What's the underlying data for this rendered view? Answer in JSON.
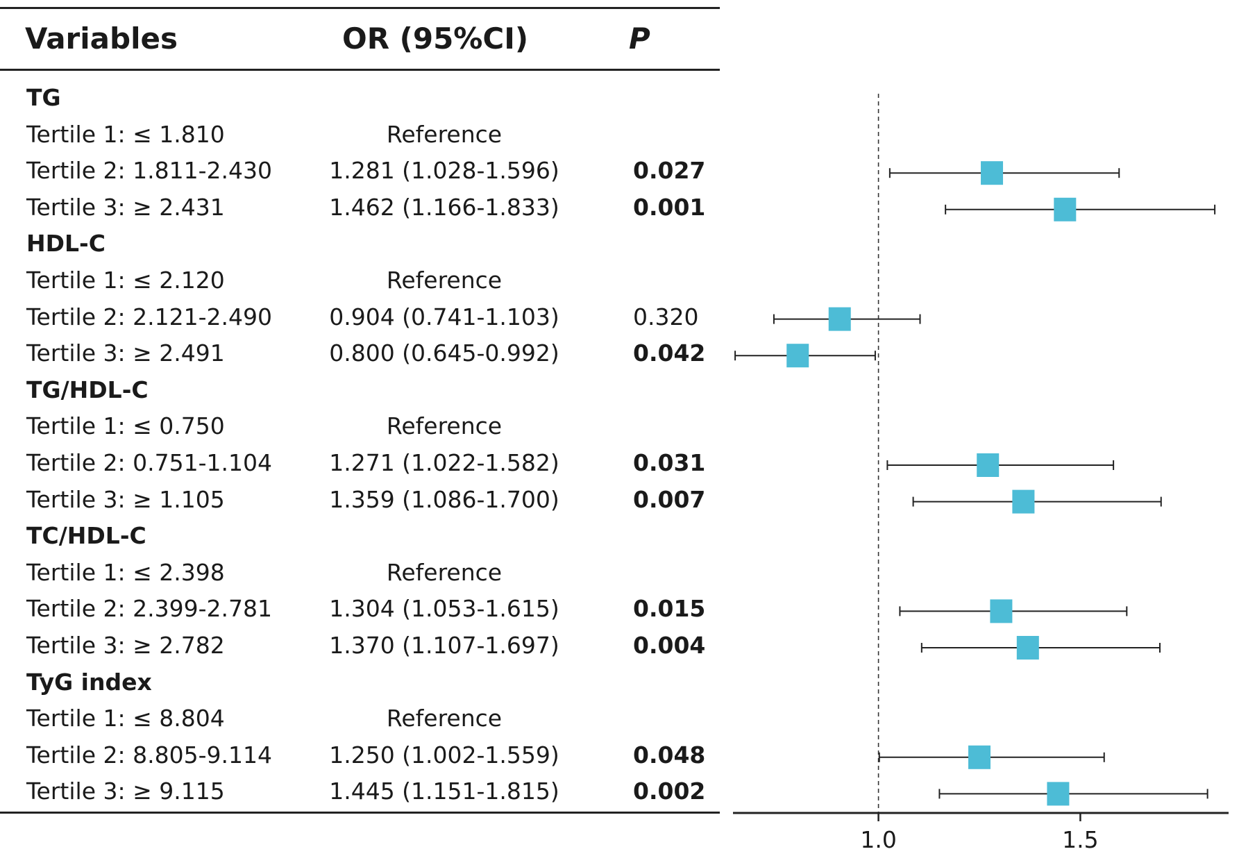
{
  "header": {
    "variables": "Variables",
    "or": "OR (95%CI)",
    "p": "P"
  },
  "rows": [
    {
      "kind": "group",
      "label": "TG"
    },
    {
      "kind": "item",
      "label": "Tertile 1: ≤ 1.810",
      "or": "Reference",
      "p": "",
      "sig": false
    },
    {
      "kind": "item",
      "label": "Tertile 2: 1.811-2.430",
      "or": "1.281 (1.028-1.596)",
      "p": "0.027",
      "sig": true
    },
    {
      "kind": "item",
      "label": "Tertile 3: ≥ 2.431",
      "or": "1.462 (1.166-1.833)",
      "p": "0.001",
      "sig": true
    },
    {
      "kind": "group",
      "label": "HDL-C"
    },
    {
      "kind": "item",
      "label": "Tertile 1: ≤ 2.120",
      "or": "Reference",
      "p": "",
      "sig": false
    },
    {
      "kind": "item",
      "label": "Tertile 2: 2.121-2.490",
      "or": "0.904 (0.741-1.103)",
      "p": "0.320",
      "sig": false
    },
    {
      "kind": "item",
      "label": "Tertile 3: ≥ 2.491",
      "or": "0.800 (0.645-0.992)",
      "p": "0.042",
      "sig": true
    },
    {
      "kind": "group",
      "label": "TG/HDL-C"
    },
    {
      "kind": "item",
      "label": "Tertile 1: ≤ 0.750",
      "or": "Reference",
      "p": "",
      "sig": false
    },
    {
      "kind": "item",
      "label": "Tertile 2: 0.751-1.104",
      "or": "1.271 (1.022-1.582)",
      "p": "0.031",
      "sig": true
    },
    {
      "kind": "item",
      "label": "Tertile 3: ≥ 1.105",
      "or": "1.359 (1.086-1.700)",
      "p": "0.007",
      "sig": true
    },
    {
      "kind": "group",
      "label": "TC/HDL-C"
    },
    {
      "kind": "item",
      "label": "Tertile 1: ≤ 2.398",
      "or": "Reference",
      "p": "",
      "sig": false
    },
    {
      "kind": "item",
      "label": "Tertile 2: 2.399-2.781",
      "or": "1.304 (1.053-1.615)",
      "p": "0.015",
      "sig": true
    },
    {
      "kind": "item",
      "label": "Tertile 3: ≥ 2.782",
      "or": "1.370 (1.107-1.697)",
      "p": "0.004",
      "sig": true
    },
    {
      "kind": "group",
      "label": "TyG index"
    },
    {
      "kind": "item",
      "label": "Tertile 1: ≤ 8.804",
      "or": "Reference",
      "p": "",
      "sig": false
    },
    {
      "kind": "item",
      "label": "Tertile 2: 8.805-9.114",
      "or": "1.250 (1.002-1.559)",
      "p": "0.048",
      "sig": true
    },
    {
      "kind": "item",
      "label": "Tertile 3: ≥ 9.115",
      "or": "1.445 (1.151-1.815)",
      "p": "0.002",
      "sig": true
    }
  ],
  "chart_data": {
    "type": "scatter",
    "subtype": "forest-plot",
    "reference_line": 1.0,
    "xlim": [
      0.65,
      1.85
    ],
    "xticks": [
      "1.0",
      "1.5"
    ],
    "marker_color": "#4dbcd6",
    "points": [
      {
        "row": 2,
        "or": 1.281,
        "lo": 1.028,
        "hi": 1.596
      },
      {
        "row": 3,
        "or": 1.462,
        "lo": 1.166,
        "hi": 1.833
      },
      {
        "row": 6,
        "or": 0.904,
        "lo": 0.741,
        "hi": 1.103
      },
      {
        "row": 7,
        "or": 0.8,
        "lo": 0.645,
        "hi": 0.992
      },
      {
        "row": 10,
        "or": 1.271,
        "lo": 1.022,
        "hi": 1.582
      },
      {
        "row": 11,
        "or": 1.359,
        "lo": 1.086,
        "hi": 1.7
      },
      {
        "row": 14,
        "or": 1.304,
        "lo": 1.053,
        "hi": 1.615
      },
      {
        "row": 15,
        "or": 1.37,
        "lo": 1.107,
        "hi": 1.697
      },
      {
        "row": 18,
        "or": 1.25,
        "lo": 1.002,
        "hi": 1.559
      },
      {
        "row": 19,
        "or": 1.445,
        "lo": 1.151,
        "hi": 1.815
      }
    ]
  }
}
